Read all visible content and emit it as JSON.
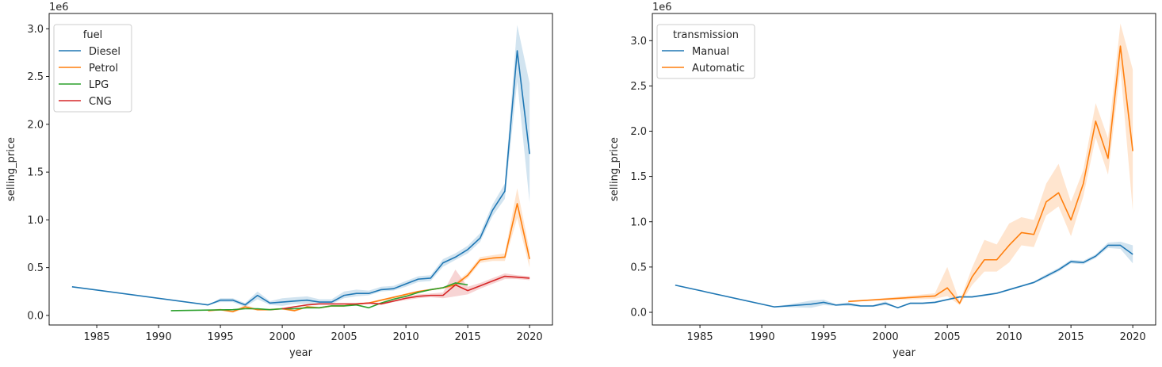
{
  "chart_data": [
    {
      "type": "line",
      "xlabel": "year",
      "ylabel": "selling_price",
      "y_offset_label": "1e6",
      "xlim": [
        1981.15,
        2021.85
      ],
      "ylim": [
        -0.1,
        3.16
      ],
      "x_ticks": [
        1985,
        1990,
        1995,
        2000,
        2005,
        2010,
        2015,
        2020
      ],
      "x_tick_labels": [
        "1985",
        "1990",
        "1995",
        "2000",
        "2005",
        "2010",
        "2015",
        "2020"
      ],
      "y_ticks": [
        0,
        0.5,
        1.0,
        1.5,
        2.0,
        2.5,
        3.0
      ],
      "y_tick_labels": [
        "0.0",
        "0.5",
        "1.0",
        "1.5",
        "2.0",
        "2.5",
        "3.0"
      ],
      "legend": {
        "title": "fuel",
        "placement": "upper-left"
      },
      "grid": false,
      "series": [
        {
          "name": "Diesel",
          "color": "#1f77b4",
          "x": [
            1983,
            1994,
            1995,
            1996,
            1997,
            1998,
            1999,
            2000,
            2001,
            2002,
            2003,
            2004,
            2005,
            2006,
            2007,
            2008,
            2009,
            2010,
            2011,
            2012,
            2013,
            2014,
            2015,
            2016,
            2017,
            2018,
            2019,
            2020
          ],
          "y": [
            0.3,
            0.11,
            0.16,
            0.16,
            0.11,
            0.21,
            0.13,
            0.14,
            0.15,
            0.16,
            0.14,
            0.14,
            0.21,
            0.23,
            0.23,
            0.27,
            0.28,
            0.33,
            0.38,
            0.39,
            0.55,
            0.61,
            0.69,
            0.81,
            1.1,
            1.3,
            2.77,
            1.69
          ],
          "ci_low": [
            0.3,
            0.11,
            0.14,
            0.14,
            0.09,
            0.17,
            0.11,
            0.1,
            0.12,
            0.12,
            0.12,
            0.12,
            0.18,
            0.2,
            0.21,
            0.25,
            0.26,
            0.3,
            0.35,
            0.36,
            0.51,
            0.58,
            0.65,
            0.77,
            1.04,
            1.22,
            2.45,
            1.18
          ],
          "ci_high": [
            0.3,
            0.11,
            0.18,
            0.18,
            0.13,
            0.25,
            0.15,
            0.18,
            0.19,
            0.2,
            0.17,
            0.17,
            0.25,
            0.27,
            0.26,
            0.3,
            0.31,
            0.36,
            0.41,
            0.42,
            0.59,
            0.65,
            0.73,
            0.86,
            1.16,
            1.38,
            3.04,
            2.43
          ]
        },
        {
          "name": "Petrol",
          "color": "#ff7f0e",
          "x": [
            1994,
            1995,
            1996,
            1997,
            1998,
            1999,
            2000,
            2001,
            2002,
            2003,
            2004,
            2005,
            2006,
            2007,
            2008,
            2009,
            2010,
            2011,
            2012,
            2013,
            2014,
            2015,
            2016,
            2017,
            2018,
            2019,
            2020
          ],
          "y": [
            0.05,
            0.06,
            0.04,
            0.09,
            0.06,
            0.06,
            0.07,
            0.05,
            0.09,
            0.08,
            0.1,
            0.1,
            0.12,
            0.13,
            0.16,
            0.19,
            0.22,
            0.25,
            0.27,
            0.29,
            0.32,
            0.42,
            0.58,
            0.6,
            0.61,
            1.17,
            0.59
          ],
          "ci_low": [
            0.04,
            0.05,
            0.03,
            0.07,
            0.05,
            0.05,
            0.06,
            0.04,
            0.08,
            0.07,
            0.09,
            0.09,
            0.11,
            0.12,
            0.15,
            0.18,
            0.21,
            0.24,
            0.26,
            0.28,
            0.3,
            0.39,
            0.55,
            0.57,
            0.57,
            1.02,
            0.5
          ],
          "ci_high": [
            0.06,
            0.07,
            0.05,
            0.11,
            0.07,
            0.07,
            0.08,
            0.06,
            0.1,
            0.09,
            0.11,
            0.11,
            0.13,
            0.14,
            0.17,
            0.2,
            0.23,
            0.26,
            0.28,
            0.3,
            0.34,
            0.45,
            0.61,
            0.63,
            0.65,
            1.33,
            0.68
          ]
        },
        {
          "name": "LPG",
          "color": "#2ca02c",
          "x": [
            1991,
            1996,
            1997,
            1998,
            1999,
            2000,
            2001,
            2002,
            2003,
            2004,
            2005,
            2006,
            2007,
            2008,
            2009,
            2010,
            2011,
            2012,
            2013,
            2014,
            2015
          ],
          "y": [
            0.05,
            0.06,
            0.07,
            0.07,
            0.06,
            0.07,
            0.07,
            0.08,
            0.08,
            0.1,
            0.1,
            0.11,
            0.08,
            0.13,
            0.17,
            0.2,
            0.24,
            0.27,
            0.29,
            0.34,
            0.32
          ],
          "ci_low": [
            0.05,
            0.06,
            0.07,
            0.07,
            0.06,
            0.07,
            0.07,
            0.08,
            0.08,
            0.1,
            0.1,
            0.11,
            0.08,
            0.13,
            0.17,
            0.2,
            0.24,
            0.27,
            0.29,
            0.34,
            0.32
          ],
          "ci_high": [
            0.05,
            0.06,
            0.07,
            0.07,
            0.06,
            0.07,
            0.07,
            0.08,
            0.08,
            0.1,
            0.1,
            0.11,
            0.08,
            0.13,
            0.17,
            0.2,
            0.24,
            0.27,
            0.29,
            0.34,
            0.32
          ]
        },
        {
          "name": "CNG",
          "color": "#d62728",
          "x": [
            2000,
            2001,
            2002,
            2003,
            2004,
            2005,
            2006,
            2007,
            2008,
            2009,
            2010,
            2011,
            2012,
            2013,
            2014,
            2015,
            2016,
            2017,
            2018,
            2019,
            2020
          ],
          "y": [
            0.07,
            0.09,
            0.11,
            0.12,
            0.12,
            0.12,
            0.12,
            0.13,
            0.12,
            0.15,
            0.18,
            0.2,
            0.21,
            0.21,
            0.32,
            0.26,
            0.31,
            0.36,
            0.41,
            0.4,
            0.39
          ],
          "ci_low": [
            0.07,
            0.09,
            0.11,
            0.12,
            0.12,
            0.12,
            0.12,
            0.13,
            0.11,
            0.14,
            0.16,
            0.18,
            0.19,
            0.18,
            0.2,
            0.22,
            0.28,
            0.33,
            0.38,
            0.38,
            0.37
          ],
          "ci_high": [
            0.07,
            0.09,
            0.11,
            0.12,
            0.12,
            0.12,
            0.12,
            0.13,
            0.13,
            0.16,
            0.2,
            0.22,
            0.23,
            0.24,
            0.48,
            0.3,
            0.34,
            0.39,
            0.44,
            0.42,
            0.41
          ]
        }
      ]
    },
    {
      "type": "line",
      "xlabel": "year",
      "ylabel": "selling_price",
      "y_offset_label": "1e6",
      "xlim": [
        1981.15,
        2021.85
      ],
      "ylim": [
        -0.14,
        3.3
      ],
      "x_ticks": [
        1985,
        1990,
        1995,
        2000,
        2005,
        2010,
        2015,
        2020
      ],
      "x_tick_labels": [
        "1985",
        "1990",
        "1995",
        "2000",
        "2005",
        "2010",
        "2015",
        "2020"
      ],
      "y_ticks": [
        0,
        0.5,
        1.0,
        1.5,
        2.0,
        2.5,
        3.0
      ],
      "y_tick_labels": [
        "0.0",
        "0.5",
        "1.0",
        "1.5",
        "2.0",
        "2.5",
        "3.0"
      ],
      "legend": {
        "title": "transmission",
        "placement": "upper-left"
      },
      "grid": false,
      "series": [
        {
          "name": "Manual",
          "color": "#1f77b4",
          "x": [
            1983,
            1991,
            1994,
            1995,
            1996,
            1997,
            1998,
            1999,
            2000,
            2001,
            2002,
            2003,
            2004,
            2005,
            2006,
            2007,
            2008,
            2009,
            2010,
            2011,
            2012,
            2013,
            2014,
            2015,
            2016,
            2017,
            2018,
            2019,
            2020
          ],
          "y": [
            0.3,
            0.06,
            0.09,
            0.11,
            0.08,
            0.09,
            0.07,
            0.07,
            0.1,
            0.05,
            0.1,
            0.1,
            0.11,
            0.14,
            0.17,
            0.17,
            0.19,
            0.21,
            0.25,
            0.29,
            0.33,
            0.4,
            0.47,
            0.56,
            0.55,
            0.62,
            0.74,
            0.74,
            0.64
          ],
          "ci_low": [
            0.3,
            0.06,
            0.05,
            0.08,
            0.07,
            0.07,
            0.06,
            0.06,
            0.08,
            0.05,
            0.09,
            0.09,
            0.1,
            0.13,
            0.16,
            0.16,
            0.18,
            0.2,
            0.24,
            0.28,
            0.32,
            0.38,
            0.45,
            0.54,
            0.53,
            0.6,
            0.71,
            0.7,
            0.54
          ],
          "ci_high": [
            0.3,
            0.06,
            0.13,
            0.14,
            0.09,
            0.11,
            0.08,
            0.08,
            0.12,
            0.05,
            0.11,
            0.11,
            0.12,
            0.15,
            0.18,
            0.18,
            0.2,
            0.22,
            0.26,
            0.3,
            0.34,
            0.42,
            0.49,
            0.58,
            0.57,
            0.64,
            0.77,
            0.78,
            0.74
          ]
        },
        {
          "name": "Automatic",
          "color": "#ff7f0e",
          "x": [
            1997,
            2004,
            2005,
            2006,
            2007,
            2008,
            2009,
            2010,
            2011,
            2012,
            2013,
            2014,
            2015,
            2016,
            2017,
            2018,
            2019,
            2020
          ],
          "y": [
            0.12,
            0.18,
            0.27,
            0.1,
            0.39,
            0.58,
            0.58,
            0.74,
            0.88,
            0.86,
            1.22,
            1.32,
            1.02,
            1.42,
            2.11,
            1.7,
            2.94,
            1.78
          ],
          "ci_low": [
            0.12,
            0.15,
            0.18,
            0.08,
            0.3,
            0.45,
            0.45,
            0.55,
            0.74,
            0.72,
            1.07,
            1.17,
            0.84,
            1.28,
            1.93,
            1.52,
            2.69,
            1.12
          ],
          "ci_high": [
            0.12,
            0.21,
            0.5,
            0.12,
            0.49,
            0.8,
            0.75,
            0.98,
            1.05,
            1.02,
            1.42,
            1.64,
            1.22,
            1.57,
            2.31,
            1.92,
            3.19,
            2.68
          ]
        }
      ]
    }
  ]
}
